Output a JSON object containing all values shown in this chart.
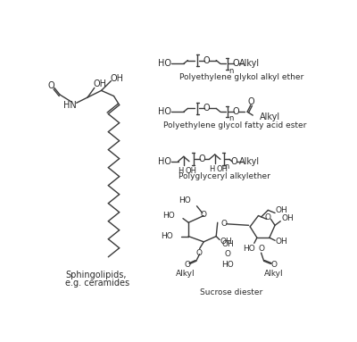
{
  "bg_color": "#ffffff",
  "line_color": "#3a3a3a",
  "text_color": "#2a2a2a",
  "fig_width": 4.0,
  "fig_height": 3.83,
  "dpi": 100,
  "labels": {
    "sphingo": "Sphingolipids,\ne.g. ceramides",
    "peg_ether": "Polyethylene glykol alkyl ether",
    "peg_ester": "Polyethylene glycol fatty acid ester",
    "polygly": "Polyglyceryl alkylether",
    "sucrose": "Sucrose diester"
  }
}
